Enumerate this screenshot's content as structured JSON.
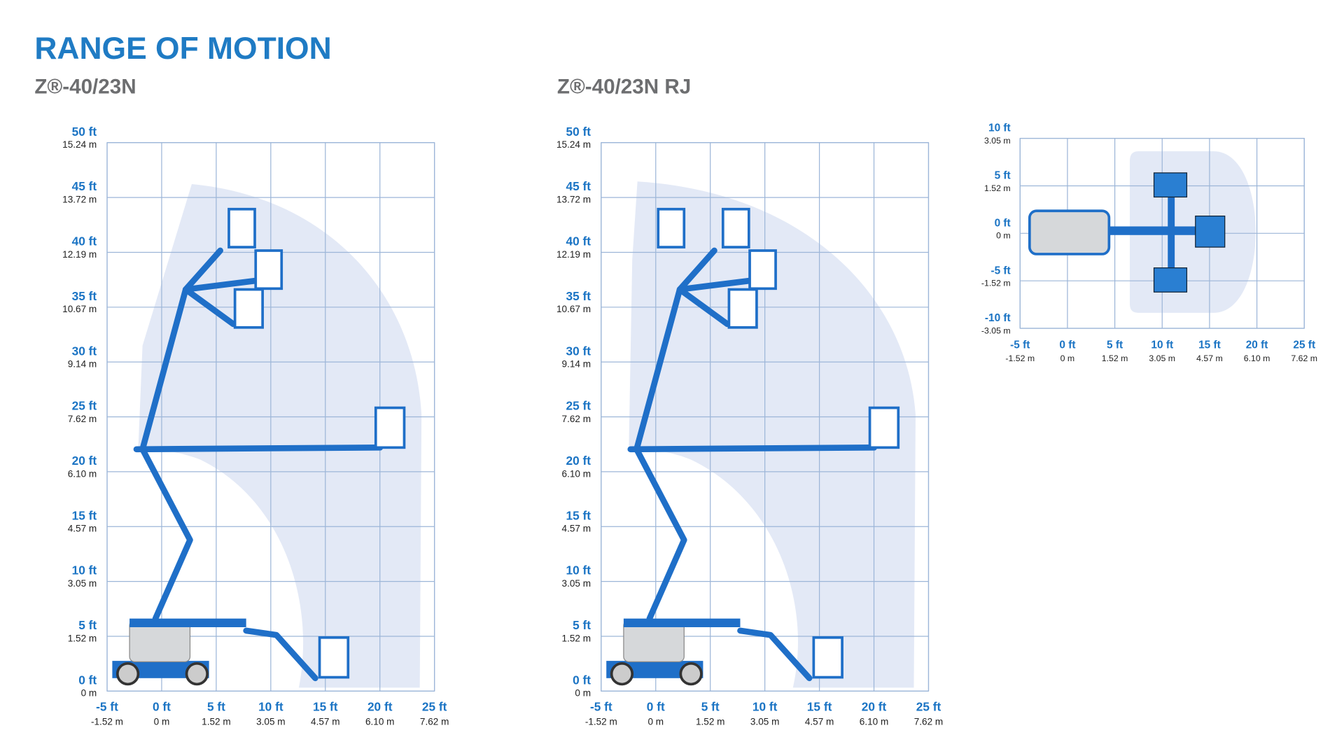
{
  "header": {
    "title": "RANGE OF MOTION"
  },
  "diagrams": [
    {
      "title": "Z®-40/23N",
      "y_ticks": [
        {
          "ft": "50 ft",
          "m": "15.24 m"
        },
        {
          "ft": "45 ft",
          "m": "13.72 m"
        },
        {
          "ft": "40 ft",
          "m": "12.19 m"
        },
        {
          "ft": "35 ft",
          "m": "10.67 m"
        },
        {
          "ft": "30 ft",
          "m": "9.14 m"
        },
        {
          "ft": "25 ft",
          "m": "7.62 m"
        },
        {
          "ft": "20 ft",
          "m": "6.10 m"
        },
        {
          "ft": "15 ft",
          "m": "4.57 m"
        },
        {
          "ft": "10 ft",
          "m": "3.05 m"
        },
        {
          "ft": "5 ft",
          "m": "1.52 m"
        },
        {
          "ft": "0 ft",
          "m": "0 m"
        }
      ],
      "x_ticks": [
        {
          "ft": "-5 ft",
          "m": "-1.52 m"
        },
        {
          "ft": "0 ft",
          "m": "0 m"
        },
        {
          "ft": "5 ft",
          "m": "1.52 m"
        },
        {
          "ft": "10 ft",
          "m": "3.05 m"
        },
        {
          "ft": "15 ft",
          "m": "4.57 m"
        },
        {
          "ft": "20 ft",
          "m": "6.10 m"
        },
        {
          "ft": "25 ft",
          "m": "7.62 m"
        }
      ]
    },
    {
      "title": "Z®-40/23N RJ",
      "y_ticks": [
        {
          "ft": "50 ft",
          "m": "15.24 m"
        },
        {
          "ft": "45 ft",
          "m": "13.72 m"
        },
        {
          "ft": "40 ft",
          "m": "12.19 m"
        },
        {
          "ft": "35 ft",
          "m": "10.67 m"
        },
        {
          "ft": "30 ft",
          "m": "9.14 m"
        },
        {
          "ft": "25 ft",
          "m": "7.62 m"
        },
        {
          "ft": "20 ft",
          "m": "6.10 m"
        },
        {
          "ft": "15 ft",
          "m": "4.57 m"
        },
        {
          "ft": "10 ft",
          "m": "3.05 m"
        },
        {
          "ft": "5 ft",
          "m": "1.52 m"
        },
        {
          "ft": "0 ft",
          "m": "0 m"
        }
      ],
      "x_ticks": [
        {
          "ft": "-5 ft",
          "m": "-1.52 m"
        },
        {
          "ft": "0 ft",
          "m": "0 m"
        },
        {
          "ft": "5 ft",
          "m": "1.52 m"
        },
        {
          "ft": "10 ft",
          "m": "3.05 m"
        },
        {
          "ft": "15 ft",
          "m": "4.57 m"
        },
        {
          "ft": "20 ft",
          "m": "6.10 m"
        },
        {
          "ft": "25 ft",
          "m": "7.62 m"
        }
      ]
    },
    {
      "y_ticks": [
        {
          "ft": "10 ft",
          "m": "3.05 m"
        },
        {
          "ft": "5 ft",
          "m": "1.52 m"
        },
        {
          "ft": "0 ft",
          "m": "0 m"
        },
        {
          "ft": "-5 ft",
          "m": "-1.52 m"
        },
        {
          "ft": "-10 ft",
          "m": "-3.05 m"
        }
      ],
      "x_ticks": [
        {
          "ft": "-5 ft",
          "m": "-1.52 m"
        },
        {
          "ft": "0 ft",
          "m": "0 m"
        },
        {
          "ft": "5 ft",
          "m": "1.52 m"
        },
        {
          "ft": "10 ft",
          "m": "3.05 m"
        },
        {
          "ft": "15 ft",
          "m": "4.57 m"
        },
        {
          "ft": "20 ft",
          "m": "6.10 m"
        },
        {
          "ft": "25 ft",
          "m": "7.62 m"
        }
      ]
    }
  ]
}
